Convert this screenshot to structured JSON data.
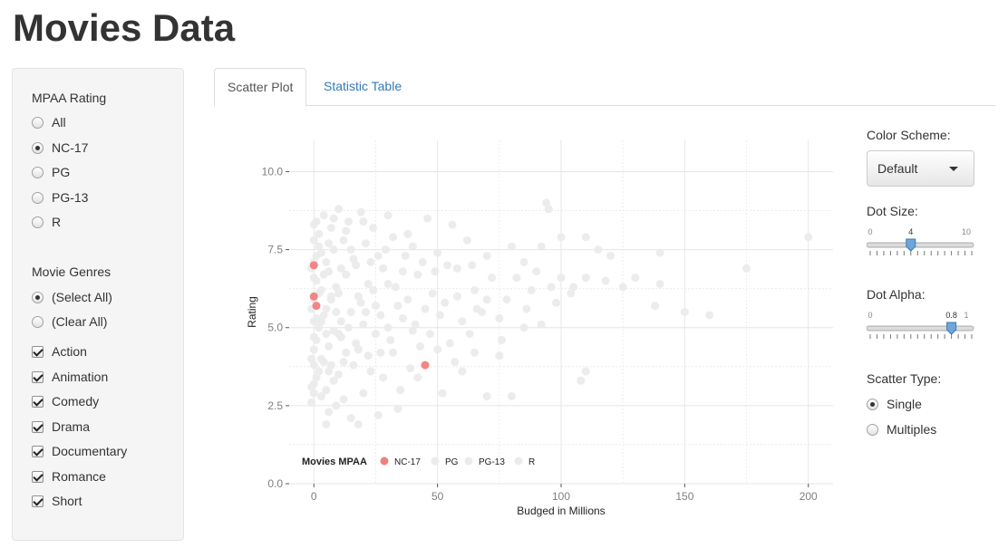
{
  "app": {
    "title": "Movies Data"
  },
  "sidebar": {
    "mpaa_label": "MPAA Rating",
    "mpaa_options": [
      {
        "label": "All",
        "checked": false
      },
      {
        "label": "NC-17",
        "checked": true
      },
      {
        "label": "PG",
        "checked": false
      },
      {
        "label": "PG-13",
        "checked": false
      },
      {
        "label": "R",
        "checked": false
      }
    ],
    "genres_label": "Movie Genres",
    "select_all": {
      "label": "(Select All)",
      "checked": true
    },
    "clear_all": {
      "label": "(Clear All)",
      "checked": false
    },
    "genres": [
      {
        "label": "Action",
        "checked": true
      },
      {
        "label": "Animation",
        "checked": true
      },
      {
        "label": "Comedy",
        "checked": true
      },
      {
        "label": "Drama",
        "checked": true
      },
      {
        "label": "Documentary",
        "checked": true
      },
      {
        "label": "Romance",
        "checked": true
      },
      {
        "label": "Short",
        "checked": true
      }
    ]
  },
  "tabs": [
    {
      "label": "Scatter Plot",
      "active": true
    },
    {
      "label": "Statistic Table",
      "active": false
    }
  ],
  "controls": {
    "color_scheme_label": "Color Scheme:",
    "color_scheme_value": "Default",
    "dot_size": {
      "label": "Dot Size:",
      "min": 0,
      "max": 10,
      "value": 4,
      "min_label": "0",
      "max_label": "10",
      "value_label": "4"
    },
    "dot_alpha": {
      "label": "Dot Alpha:",
      "min": 0,
      "max": 1,
      "value": 0.8,
      "min_label": "0",
      "max_label": "1",
      "value_label": "0.8"
    },
    "scatter_type_label": "Scatter Type:",
    "scatter_types": [
      {
        "label": "Single",
        "checked": true
      },
      {
        "label": "Multiples",
        "checked": false
      }
    ]
  },
  "colors": {
    "highlight": "#f08080",
    "background_points": "#ebebeb",
    "grid": "#e6e6e6",
    "accent_link": "#337ab7"
  },
  "chart_data": {
    "type": "scatter",
    "xlabel": "Budged in Millions",
    "ylabel": "Rating",
    "xlim": [
      -10,
      210
    ],
    "ylim": [
      0,
      11
    ],
    "x_ticks": [
      0,
      50,
      100,
      150,
      200
    ],
    "x_tick_labels": [
      "0",
      "50",
      "100",
      "150",
      "200"
    ],
    "y_ticks": [
      0,
      2.5,
      5,
      7.5,
      10
    ],
    "y_tick_labels": [
      "0.0",
      "2.5",
      "5.0",
      "7.5",
      "10.0"
    ],
    "grid": true,
    "legend": {
      "title": "Movies MPAA",
      "position": "bottom-left",
      "entries": [
        "NC-17",
        "PG",
        "PG-13",
        "R"
      ]
    },
    "series": [
      {
        "name": "NC-17",
        "color": "#f08080",
        "points": [
          [
            0,
            7.0
          ],
          [
            0,
            6.0
          ],
          [
            1,
            5.7
          ],
          [
            45,
            3.8
          ]
        ]
      },
      {
        "name": "R",
        "color": "#ebebeb",
        "points": [
          [
            200,
            7.9
          ],
          [
            175,
            6.9
          ],
          [
            160,
            5.4
          ],
          [
            150,
            5.5
          ],
          [
            140,
            7.4
          ],
          [
            140,
            6.4
          ],
          [
            138,
            5.7
          ],
          [
            130,
            6.6
          ],
          [
            125,
            6.3
          ],
          [
            120,
            7.3
          ],
          [
            115,
            7.5
          ],
          [
            110,
            7.9
          ],
          [
            110,
            6.6
          ],
          [
            110,
            3.6
          ],
          [
            108,
            3.3
          ],
          [
            105,
            6.3
          ],
          [
            100,
            7.9
          ],
          [
            100,
            6.6
          ],
          [
            98,
            5.8
          ],
          [
            95,
            8.8
          ],
          [
            94,
            9.0
          ],
          [
            92,
            7.6
          ],
          [
            90,
            6.8
          ],
          [
            88,
            6.2
          ],
          [
            85,
            7.1
          ],
          [
            85,
            5.0
          ],
          [
            82,
            6.6
          ],
          [
            80,
            7.6
          ],
          [
            78,
            5.9
          ],
          [
            75,
            5.3
          ],
          [
            75,
            4.1
          ],
          [
            72,
            6.6
          ],
          [
            70,
            7.3
          ],
          [
            70,
            2.8
          ],
          [
            68,
            5.5
          ],
          [
            65,
            6.2
          ],
          [
            65,
            4.2
          ],
          [
            62,
            7.8
          ],
          [
            60,
            5.2
          ],
          [
            58,
            6.9
          ],
          [
            56,
            8.3
          ],
          [
            55,
            4.5
          ],
          [
            53,
            5.8
          ],
          [
            50,
            7.4
          ],
          [
            50,
            4.3
          ],
          [
            48,
            6.1
          ],
          [
            46,
            8.5
          ],
          [
            45,
            5.6
          ],
          [
            42,
            6.7
          ],
          [
            40,
            7.6
          ],
          [
            40,
            4.9
          ],
          [
            38,
            8.0
          ],
          [
            36,
            5.3
          ],
          [
            35,
            3.0
          ],
          [
            33,
            6.3
          ],
          [
            32,
            7.9
          ],
          [
            30,
            5.0
          ],
          [
            30,
            8.6
          ],
          [
            28,
            6.9
          ],
          [
            27,
            4.2
          ],
          [
            26,
            7.3
          ],
          [
            25,
            5.7
          ],
          [
            24,
            8.2
          ],
          [
            23,
            3.6
          ],
          [
            22,
            6.4
          ],
          [
            21,
            7.7
          ],
          [
            20,
            5.1
          ],
          [
            20,
            2.9
          ],
          [
            19,
            8.7
          ],
          [
            18,
            6.0
          ],
          [
            17,
            4.5
          ],
          [
            16,
            7.2
          ],
          [
            15,
            5.5
          ],
          [
            15,
            2.1
          ],
          [
            14,
            8.4
          ],
          [
            13,
            6.7
          ],
          [
            12,
            3.9
          ],
          [
            12,
            7.8
          ],
          [
            11,
            5.2
          ],
          [
            10,
            8.8
          ],
          [
            10,
            4.8
          ],
          [
            9,
            6.3
          ],
          [
            9,
            2.5
          ],
          [
            8,
            7.5
          ],
          [
            8,
            3.3
          ],
          [
            7,
            5.9
          ],
          [
            7,
            8.2
          ],
          [
            6,
            4.4
          ],
          [
            6,
            6.8
          ],
          [
            5,
            1.9
          ],
          [
            5,
            7.1
          ],
          [
            5,
            3.0
          ],
          [
            4,
            5.4
          ],
          [
            4,
            8.6
          ],
          [
            3,
            6.2
          ],
          [
            3,
            4.0
          ],
          [
            3,
            2.8
          ],
          [
            2,
            7.6
          ],
          [
            2,
            5.0
          ],
          [
            2,
            8.0
          ],
          [
            1,
            6.5
          ],
          [
            1,
            4.6
          ],
          [
            1,
            3.4
          ],
          [
            1,
            7.3
          ],
          [
            0,
            8.3
          ],
          [
            0,
            5.2
          ],
          [
            0,
            2.9
          ],
          [
            0,
            4.3
          ],
          [
            0,
            6.6
          ],
          [
            0,
            3.8
          ],
          [
            0,
            7.8
          ],
          [
            -1,
            5.6
          ],
          [
            -1,
            4.0
          ],
          [
            -1,
            2.6
          ],
          [
            -1,
            6.9
          ],
          [
            -1,
            3.1
          ],
          [
            26,
            2.2
          ],
          [
            34,
            2.4
          ],
          [
            42,
            3.4
          ],
          [
            60,
            3.6
          ],
          [
            52,
            2.9
          ],
          [
            18,
            1.9
          ],
          [
            12,
            2.7
          ],
          [
            6,
            2.3
          ],
          [
            80,
            2.8
          ],
          [
            64,
            7.0
          ],
          [
            58,
            6.0
          ],
          [
            47,
            4.8
          ],
          [
            44,
            7.1
          ],
          [
            38,
            5.9
          ],
          [
            36,
            6.8
          ],
          [
            31,
            4.6
          ],
          [
            29,
            7.5
          ],
          [
            27,
            5.4
          ],
          [
            24,
            6.2
          ],
          [
            22,
            4.1
          ],
          [
            19,
            5.8
          ],
          [
            17,
            7.0
          ],
          [
            16,
            3.8
          ],
          [
            14,
            5.0
          ],
          [
            13,
            4.2
          ],
          [
            11,
            6.9
          ],
          [
            10,
            3.5
          ],
          [
            9,
            5.5
          ],
          [
            8,
            4.9
          ],
          [
            7,
            6.0
          ],
          [
            6,
            3.6
          ],
          [
            5,
            5.6
          ],
          [
            4,
            3.9
          ],
          [
            4,
            6.7
          ],
          [
            3,
            7.4
          ],
          [
            2,
            6.1
          ],
          [
            2,
            3.6
          ],
          [
            1,
            5.3
          ],
          [
            0,
            7.1
          ],
          [
            0,
            5.9
          ],
          [
            86,
            5.6
          ],
          [
            92,
            5.1
          ],
          [
            96,
            6.3
          ],
          [
            104,
            6.1
          ],
          [
            118,
            6.5
          ],
          [
            76,
            4.6
          ],
          [
            70,
            5.9
          ],
          [
            66,
            5.6
          ],
          [
            63,
            4.8
          ],
          [
            57,
            3.9
          ],
          [
            54,
            7.0
          ],
          [
            51,
            5.4
          ],
          [
            49,
            6.8
          ],
          [
            43,
            4.4
          ],
          [
            41,
            5.1
          ],
          [
            39,
            3.7
          ],
          [
            37,
            7.3
          ],
          [
            34,
            5.7
          ],
          [
            32,
            4.2
          ],
          [
            30,
            6.4
          ],
          [
            28,
            3.4
          ],
          [
            25,
            4.8
          ],
          [
            23,
            7.1
          ],
          [
            21,
            5.5
          ],
          [
            20,
            8.4
          ],
          [
            18,
            4.3
          ],
          [
            15,
            7.5
          ],
          [
            13,
            8.1
          ],
          [
            11,
            4.7
          ],
          [
            10,
            6.1
          ],
          [
            8,
            8.5
          ],
          [
            7,
            3.8
          ],
          [
            6,
            7.7
          ],
          [
            5,
            4.8
          ],
          [
            3,
            5.2
          ],
          [
            1,
            8.4
          ],
          [
            0,
            4.7
          ],
          [
            0,
            3.2
          ]
        ]
      }
    ]
  }
}
